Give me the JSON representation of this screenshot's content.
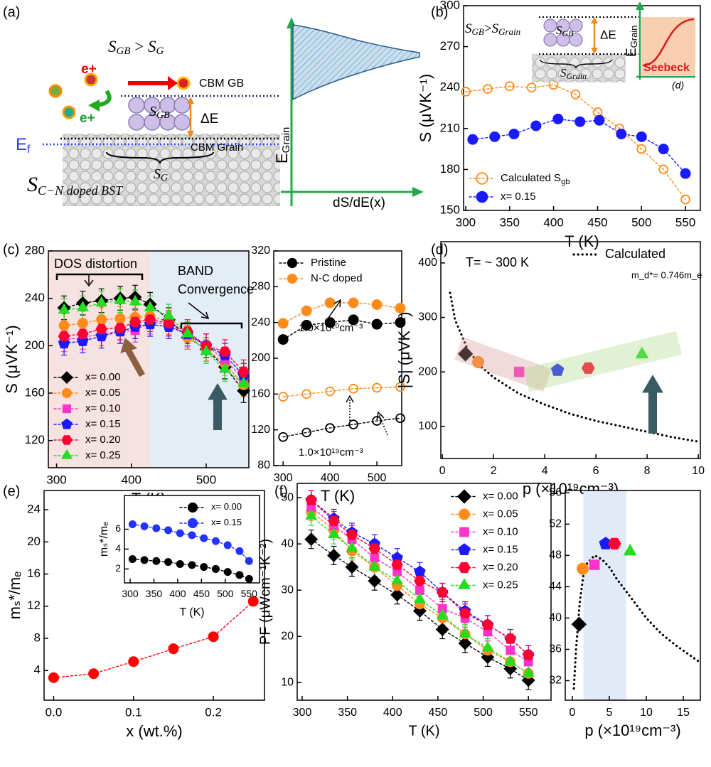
{
  "panel_labels": [
    "(a)",
    "(b)",
    "(c)",
    "(d)",
    "(e)",
    "(f)"
  ],
  "diagram": {
    "relation": {
      "s1": "S",
      "s1_sub": "GB",
      "op": ">",
      "s2": "S",
      "s2_sub": "G"
    },
    "carrier": "e+",
    "carrier_2": "e+",
    "cbm_gb": "CBM GB",
    "grain_boundary": {
      "base": "S",
      "sub": "GB"
    },
    "delta_e": "ΔE",
    "fermi": {
      "base": "E",
      "sub": "f"
    },
    "cbm_grain": "CBM Grain",
    "grain": {
      "base": "S",
      "sub": "G"
    },
    "bst": {
      "base": "S",
      "sub": "C−N doped BST"
    },
    "e_axis": {
      "base": "E",
      "sub": "Grain"
    },
    "x_axis": "dS/dE(x)"
  },
  "inset_b": {
    "relation": {
      "s1": "S",
      "s1_sub": "GB",
      "op": ">",
      "s2": "S",
      "s2_sub": "Grain"
    },
    "grain_boundary": {
      "base": "S",
      "sub": "GB"
    },
    "delta_e": "ΔE",
    "grain": {
      "base": "S",
      "sub": "Grain"
    },
    "e_axis": {
      "base": "E",
      "sub": "Grain"
    },
    "seebeck": "Seebeck",
    "ref": "(d)"
  },
  "chart_data": [
    {
      "type": "line",
      "xlabel": "T (K)",
      "ylabel": "S (μVK⁻¹)",
      "xlim": [
        297.6,
        566.9
      ],
      "ylim": [
        150,
        300
      ],
      "xticks": [
        300,
        350,
        400,
        450,
        500,
        550
      ],
      "yticks": [
        150,
        180,
        210,
        240,
        270,
        300
      ],
      "legend": "lower left",
      "series": [
        {
          "name": "Calculated S",
          "name_sub": "gb",
          "color": "#ff8c1a",
          "marker": "circle",
          "filled": false,
          "x": [
            300,
            325,
            350,
            375,
            400,
            425,
            450,
            475,
            500,
            525,
            550
          ],
          "values": [
            237,
            239,
            241,
            240,
            242,
            235,
            222,
            210,
            195,
            180,
            158
          ]
        },
        {
          "name": "x= 0.15",
          "color": "#1a1aff",
          "marker": "circle",
          "filled": true,
          "x": [
            308,
            333,
            355,
            380,
            405,
            430,
            452,
            477,
            500,
            525,
            550
          ],
          "values": [
            202,
            204,
            206,
            212,
            217,
            215,
            216,
            206,
            204,
            195,
            177
          ]
        }
      ]
    },
    {
      "type": "line",
      "xlabel": "T (K)",
      "ylabel": "S (μVK⁻¹)",
      "xlim": [
        289,
        557
      ],
      "ylim": [
        97,
        280
      ],
      "xticks": [
        300,
        400,
        500
      ],
      "yticks": [
        120,
        160,
        200,
        240,
        280
      ],
      "legend": "lower left",
      "annotations": [
        "DOS distortion",
        "BAND",
        "Convergence"
      ],
      "shaded_regions": [
        {
          "x0": 289,
          "x1": 425,
          "color": "#f6e2e0"
        },
        {
          "x0": 425,
          "x1": 557,
          "color": "#e4ecf5"
        }
      ],
      "x": [
        310,
        335,
        360,
        385,
        405,
        425,
        450,
        475,
        500,
        525,
        550
      ],
      "series": [
        {
          "name": "x= 0.00",
          "color": "#000000",
          "marker": "diamond",
          "filled": true,
          "error": 10,
          "values": [
            232,
            236,
            238,
            240,
            241,
            235,
            222,
            207,
            197,
            182,
            162
          ]
        },
        {
          "name": "x= 0.05",
          "color": "#ff8c1a",
          "marker": "circle",
          "filled": true,
          "error": 10,
          "values": [
            217,
            219,
            222,
            223,
            224,
            225,
            220,
            207,
            197,
            185,
            167
          ]
        },
        {
          "name": "x= 0.10",
          "color": "#ff33cc",
          "marker": "square",
          "filled": true,
          "error": 10,
          "values": [
            205,
            207,
            210,
            212,
            213,
            220,
            218,
            209,
            200,
            188,
            172
          ]
        },
        {
          "name": "x= 0.15",
          "color": "#1a1aff",
          "marker": "pentagon",
          "filled": true,
          "error": 10,
          "values": [
            202,
            204,
            208,
            212,
            216,
            218,
            216,
            210,
            200,
            192,
            175
          ]
        },
        {
          "name": "x= 0.20",
          "color": "#ff0033",
          "marker": "hexagon",
          "filled": true,
          "error": 10,
          "values": [
            208,
            210,
            214,
            215,
            220,
            222,
            219,
            212,
            200,
            195,
            178
          ]
        },
        {
          "name": "x= 0.25",
          "color": "#22dd22",
          "marker": "triangle",
          "filled": true,
          "error": 10,
          "values": [
            230,
            232,
            236,
            238,
            237,
            232,
            225,
            210,
            195,
            180,
            168
          ]
        }
      ]
    },
    {
      "type": "line",
      "xlabel": "T (K)",
      "xlim": [
        280,
        553
      ],
      "ylim": [
        80,
        320
      ],
      "xticks": [
        300,
        400,
        500
      ],
      "yticks": [
        80,
        120,
        160,
        200,
        240,
        280,
        320
      ],
      "legend": "upper left",
      "annotations": [
        "1.0×10²⁰cm⁻³",
        "1.0×10¹⁹cm⁻³"
      ],
      "x": [
        300,
        350,
        400,
        450,
        500,
        550
      ],
      "series": [
        {
          "name": "Pristine",
          "color": "#000000",
          "marker": "circle",
          "filled": true,
          "values": [
            221,
            237,
            240,
            243,
            238,
            240
          ],
          "values_low": [
            112,
            117,
            122,
            126,
            130,
            133
          ]
        },
        {
          "name": "N-C doped",
          "color": "#ff8c1a",
          "marker": "circle",
          "filled": true,
          "values": [
            239,
            253,
            262,
            262,
            260,
            256
          ],
          "values_low": [
            157,
            160,
            163,
            166,
            167,
            168
          ]
        }
      ]
    },
    {
      "type": "scatter",
      "xlabel": "p (×10¹⁹cm⁻³)",
      "ylabel": "|S| (μVK⁻¹)",
      "xlim": [
        -0.06,
        10.08
      ],
      "ylim": [
        41,
        439
      ],
      "xticks": [
        0,
        2,
        4,
        6,
        8,
        10
      ],
      "yticks": [
        100,
        200,
        300,
        400
      ],
      "legend": "upper right",
      "annotations": [
        "T= ~ 300 K",
        "m_d*= 0.746m_e"
      ],
      "series": [
        {
          "name": "Calculated",
          "color": "#000000",
          "marker": "none",
          "x": [
            0.3,
            0.5,
            1,
            1.5,
            2,
            3,
            4,
            5,
            6,
            7,
            8,
            9,
            10
          ],
          "values": [
            345,
            295,
            240,
            210,
            190,
            160,
            140,
            123,
            110,
            100,
            90,
            80,
            72
          ]
        },
        {
          "color": "#000000",
          "marker": "diamond",
          "filled": true,
          "x": [
            0.9
          ],
          "values": [
            233
          ]
        },
        {
          "color": "#ff8c1a",
          "marker": "circle",
          "filled": true,
          "x": [
            1.4
          ],
          "values": [
            218
          ]
        },
        {
          "color": "#ff33cc",
          "marker": "square",
          "filled": true,
          "x": [
            3.0
          ],
          "values": [
            200
          ]
        },
        {
          "color": "#1a1aff",
          "marker": "pentagon",
          "filled": true,
          "x": [
            4.5
          ],
          "values": [
            203
          ]
        },
        {
          "color": "#ff0033",
          "marker": "hexagon",
          "filled": true,
          "x": [
            5.7
          ],
          "values": [
            207
          ]
        },
        {
          "color": "#22dd22",
          "marker": "triangle",
          "filled": true,
          "x": [
            7.8
          ],
          "values": [
            232
          ]
        }
      ]
    },
    {
      "type": "line",
      "xlabel": "x (wt.%)",
      "ylabel": "mₛ*/mₑ",
      "xlim": [
        -0.012,
        0.264
      ],
      "ylim": [
        0.3,
        26.4
      ],
      "xticks": [
        {
          "value": 0,
          "label": "0.0"
        },
        0.1,
        0.2
      ],
      "yticks": [
        4,
        8,
        12,
        16,
        20,
        24
      ],
      "series": [
        {
          "color": "#ff0000",
          "marker": "circle",
          "filled": true,
          "x": [
            0,
            0.05,
            0.1,
            0.15,
            0.2,
            0.25
          ],
          "values": [
            3.1,
            3.6,
            5.1,
            6.7,
            8.2,
            12.6
          ]
        }
      ]
    },
    {
      "type": "line",
      "xlabel": "T (K)",
      "ylabel": "mₛ*/mₑ",
      "xlim": [
        288,
        572
      ],
      "ylim": [
        0.6,
        9.4
      ],
      "xticks": [
        300,
        350,
        400,
        450,
        500,
        550
      ],
      "yticks": [
        2,
        4,
        6
      ],
      "legend": "upper right",
      "x": [
        305,
        330,
        355,
        380,
        405,
        430,
        455,
        480,
        505,
        530,
        550
      ],
      "series": [
        {
          "name": "x= 0.00",
          "color": "#000000",
          "marker": "circle",
          "filled": true,
          "values": [
            3.0,
            2.9,
            2.8,
            2.7,
            2.5,
            2.4,
            2.2,
            2.0,
            1.7,
            1.4,
            1.0
          ]
        },
        {
          "name": "x= 0.15",
          "color": "#2233ff",
          "marker": "circle",
          "filled": true,
          "values": [
            6.5,
            6.3,
            6.1,
            5.9,
            5.6,
            5.4,
            5.1,
            4.8,
            4.4,
            3.8,
            2.8
          ]
        }
      ]
    },
    {
      "type": "line",
      "xlabel": "T (K)",
      "ylabel": "PF (μWcm⁻¹K⁻²)",
      "xlim": [
        294.5,
        575
      ],
      "ylim": [
        6.2,
        53.1
      ],
      "xticks": [
        300,
        350,
        400,
        450,
        500,
        550
      ],
      "yticks": [
        10,
        20,
        30,
        40,
        50
      ],
      "legend": "upper right",
      "x": [
        310,
        335,
        355,
        380,
        405,
        430,
        455,
        480,
        505,
        530,
        550
      ],
      "series": [
        {
          "name": "x= 0.00",
          "color": "#000000",
          "marker": "diamond",
          "filled": true,
          "error": 2,
          "values": [
            41,
            37.5,
            35,
            32,
            29,
            25.5,
            21.5,
            18.5,
            15.5,
            13,
            10.5
          ]
        },
        {
          "name": "x= 0.05",
          "color": "#ff8c1a",
          "marker": "circle",
          "filled": true,
          "error": 2,
          "values": [
            47,
            43,
            38.5,
            35,
            31,
            27,
            24,
            20.5,
            17,
            14.5,
            12
          ]
        },
        {
          "name": "x= 0.10",
          "color": "#ff33cc",
          "marker": "square",
          "filled": true,
          "error": 2,
          "values": [
            48,
            44,
            41,
            37,
            34,
            30,
            26,
            24,
            21,
            17,
            14.5
          ]
        },
        {
          "name": "x= 0.15",
          "color": "#1a1aff",
          "marker": "pentagon",
          "filled": true,
          "error": 2,
          "values": [
            49.5,
            45.5,
            42.5,
            40,
            37,
            34,
            29.5,
            25.5,
            22.5,
            19.5,
            16
          ]
        },
        {
          "name": "x= 0.20",
          "color": "#ff0033",
          "marker": "hexagon",
          "filled": true,
          "error": 2,
          "values": [
            49.5,
            45,
            42,
            39,
            35.5,
            32,
            29.5,
            25,
            22.5,
            19.5,
            16
          ]
        },
        {
          "name": "x= 0.25",
          "color": "#22dd22",
          "marker": "triangle",
          "filled": true,
          "error": 2,
          "values": [
            46,
            42,
            39,
            35,
            32,
            28,
            24.5,
            20.5,
            17.5,
            14.5,
            12
          ]
        }
      ]
    },
    {
      "type": "scatter",
      "xlabel": "p (×10¹⁹cm⁻³)",
      "xlim": [
        -0.96,
        17.3
      ],
      "ylim": [
        29.5,
        56.3
      ],
      "xticks": [
        0,
        5,
        10,
        15
      ],
      "yticks": [
        32,
        36,
        40,
        44,
        48,
        52,
        56
      ],
      "shaded_regions": [
        {
          "x0": 1.5,
          "x1": 7.3,
          "color": "#e1eaf6"
        }
      ],
      "series": [
        {
          "color": "#000000",
          "marker": "none",
          "x": [
            0.2,
            0.5,
            1,
            1.5,
            2,
            3,
            4,
            5,
            6,
            8,
            10,
            12,
            14,
            17
          ],
          "values": [
            31,
            36,
            42,
            45.5,
            47,
            48,
            47.5,
            46.5,
            45,
            42.5,
            40,
            38,
            36.5,
            34.5
          ]
        },
        {
          "color": "#000000",
          "marker": "diamond",
          "filled": true,
          "x": [
            0.9
          ],
          "values": [
            39.2
          ]
        },
        {
          "color": "#ff8c1a",
          "marker": "circle",
          "filled": true,
          "x": [
            1.4
          ],
          "values": [
            46.3
          ]
        },
        {
          "color": "#ff33cc",
          "marker": "square",
          "filled": true,
          "x": [
            3.0
          ],
          "values": [
            46.8
          ]
        },
        {
          "color": "#1a1aff",
          "marker": "pentagon",
          "filled": true,
          "x": [
            4.5
          ],
          "values": [
            49.5
          ]
        },
        {
          "color": "#ff0033",
          "marker": "hexagon",
          "filled": true,
          "x": [
            5.7
          ],
          "values": [
            49.5
          ]
        },
        {
          "color": "#22dd22",
          "marker": "triangle",
          "filled": true,
          "x": [
            7.8
          ],
          "values": [
            48.5
          ]
        }
      ]
    }
  ]
}
